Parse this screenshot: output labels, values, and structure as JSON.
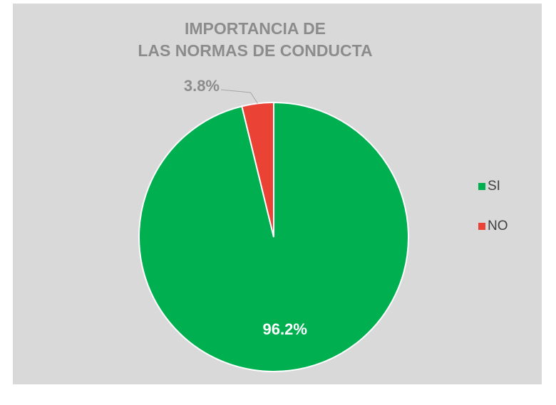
{
  "chart_data": {
    "type": "pie",
    "title": [
      "IMPORTANCIA DE",
      "LAS NORMAS DE CONDUCTA"
    ],
    "categories": [
      "SI",
      "NO"
    ],
    "values": [
      96.2,
      3.8
    ],
    "value_labels": [
      "96.2%",
      "3.8%"
    ],
    "colors": [
      "#00b050",
      "#ea4335"
    ],
    "legend": "right"
  }
}
